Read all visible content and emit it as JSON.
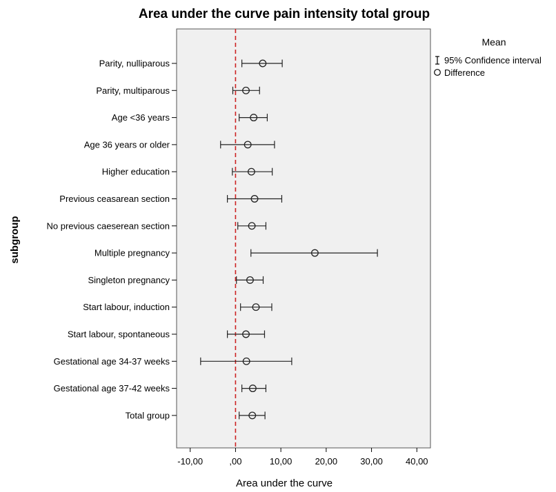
{
  "chart_data": {
    "type": "forest",
    "title": "Area under the curve pain intensity total group",
    "xlabel": "Area under the curve",
    "ylabel": "subgroup",
    "xlim": [
      -13,
      43
    ],
    "x_ticks": [
      -10,
      0,
      10,
      20,
      30,
      40
    ],
    "x_tick_labels": [
      "-10,00",
      ",00",
      "10,00",
      "20,00",
      "30,00",
      "40,00"
    ],
    "reference_line": 0,
    "reference_line_color": "#cc2222",
    "plot_background": "#f0f0f0",
    "legend": {
      "title": "Mean",
      "placement": "right",
      "items": [
        {
          "symbol": "errorbar",
          "label": "95% Confidence interval"
        },
        {
          "symbol": "circle",
          "label": "Difference"
        }
      ]
    },
    "categories": [
      "Parity, nulliparous",
      "Parity, multiparous",
      "Age <36 years",
      "Age 36 years or older",
      "Higher education",
      "Previous ceasarean section",
      "No previous caeserean section",
      "Multiple pregnancy",
      "Singleton pregnancy",
      "Start labour, induction",
      "Start labour, spontaneous",
      "Gestational age 34-37 weeks",
      "Gestational age 37-42 weeks",
      "Total group"
    ],
    "series": [
      {
        "name": "Difference",
        "values": [
          6.0,
          2.3,
          4.0,
          2.7,
          3.5,
          4.2,
          3.6,
          17.5,
          3.2,
          4.5,
          2.3,
          2.4,
          3.8,
          3.7
        ],
        "ci_lower": [
          1.4,
          -0.6,
          0.8,
          -3.3,
          -0.7,
          -1.8,
          0.5,
          3.4,
          0.2,
          1.1,
          -1.8,
          -7.7,
          1.4,
          0.8
        ],
        "ci_upper": [
          10.3,
          5.3,
          7.0,
          8.6,
          8.1,
          10.2,
          6.7,
          31.3,
          6.1,
          8.0,
          6.4,
          12.4,
          6.7,
          6.5
        ]
      }
    ]
  }
}
